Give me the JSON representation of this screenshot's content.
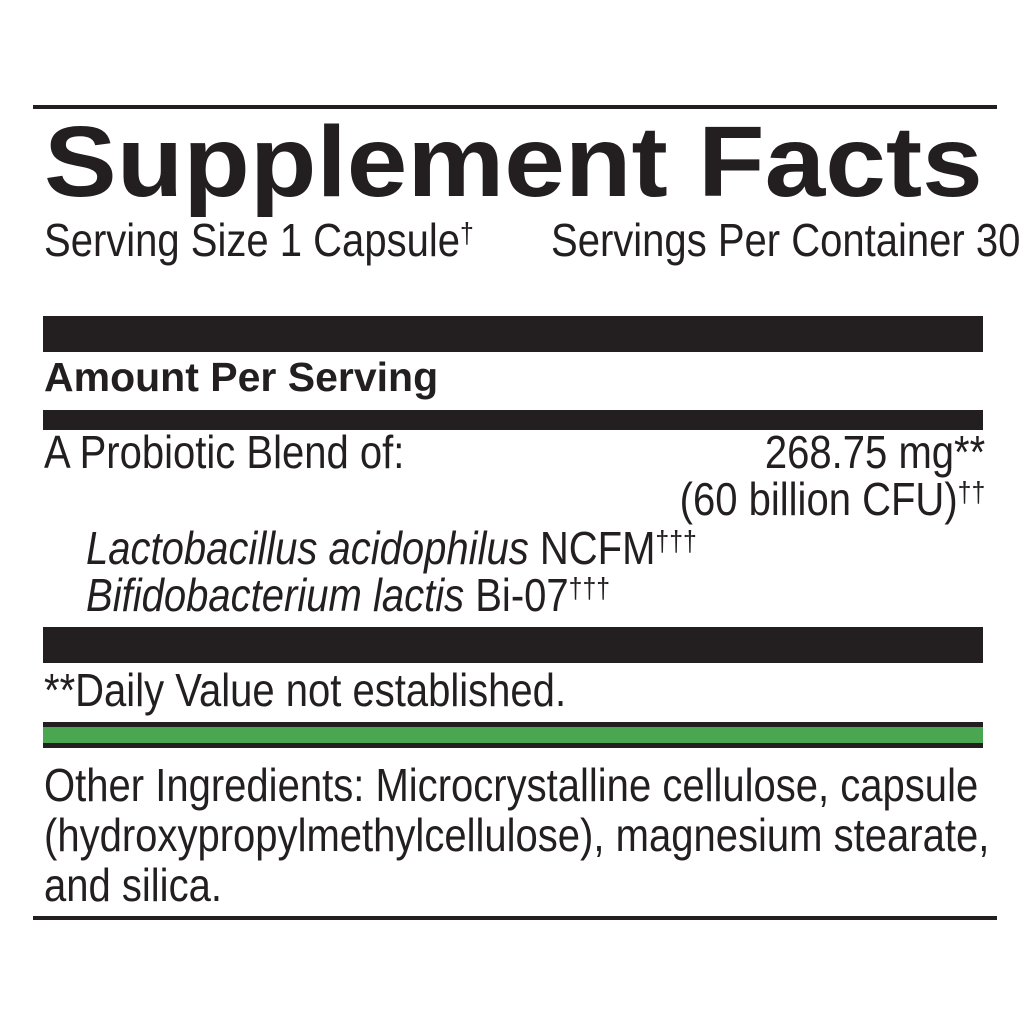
{
  "label": {
    "title": "Supplement Facts",
    "serving_size": "Serving Size 1 Capsule",
    "serving_size_sup": "†",
    "servings_per_container": "Servings Per Container 30",
    "amount_per_serving": "Amount Per Serving",
    "blend": {
      "name": "A Probiotic Blend of:",
      "amount": "268.75 mg**",
      "cfu": "(60 billion CFU)",
      "cfu_sup": "††",
      "ingredients": [
        {
          "species": "Lactobacillus acidophilus",
          "strain": " NCFM",
          "sup": "†††"
        },
        {
          "species": "Bifidobacterium lactis",
          "strain": " Bi-07",
          "sup": "†††"
        }
      ]
    },
    "footnote": "**Daily Value not established.",
    "other_ingredients": "Other Ingredients: Microcrystalline cellulose, capsule (hydroxypropylmethylcellulose), magnesium stearate, and silica.",
    "colors": {
      "ink": "#231f20",
      "accent_green": "#4aa651"
    }
  }
}
